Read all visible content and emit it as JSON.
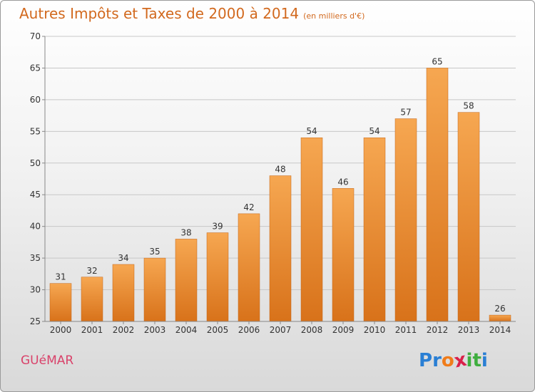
{
  "header": {
    "title": "Autres Impôts et Taxes de 2000 à 2014",
    "unit": "(en milliers d'€)"
  },
  "footer": {
    "place": "GUéMAR",
    "logo_letters": [
      "P",
      "r",
      "o",
      "x",
      "i",
      "t",
      "i"
    ],
    "logo_colors": [
      "#2a7fd4",
      "#2a7fd4",
      "#f07c1a",
      "#d9204a",
      "#3fae3f",
      "#3fae3f",
      "#2a7fd4"
    ]
  },
  "colors": {
    "bar_top": "#f6a751",
    "bar_bottom": "#d8721a",
    "grid": "#c7c7c7",
    "axis_text": "#333333"
  },
  "chart_data": {
    "type": "bar",
    "categories": [
      "2000",
      "2001",
      "2002",
      "2003",
      "2004",
      "2005",
      "2006",
      "2007",
      "2008",
      "2009",
      "2010",
      "2011",
      "2012",
      "2013",
      "2014"
    ],
    "values": [
      31,
      32,
      34,
      35,
      38,
      39,
      42,
      48,
      54,
      46,
      54,
      57,
      65,
      58,
      26
    ],
    "ylim": [
      25,
      70
    ],
    "yticks": [
      25,
      30,
      35,
      40,
      45,
      50,
      55,
      60,
      65,
      70
    ],
    "grid": true
  }
}
